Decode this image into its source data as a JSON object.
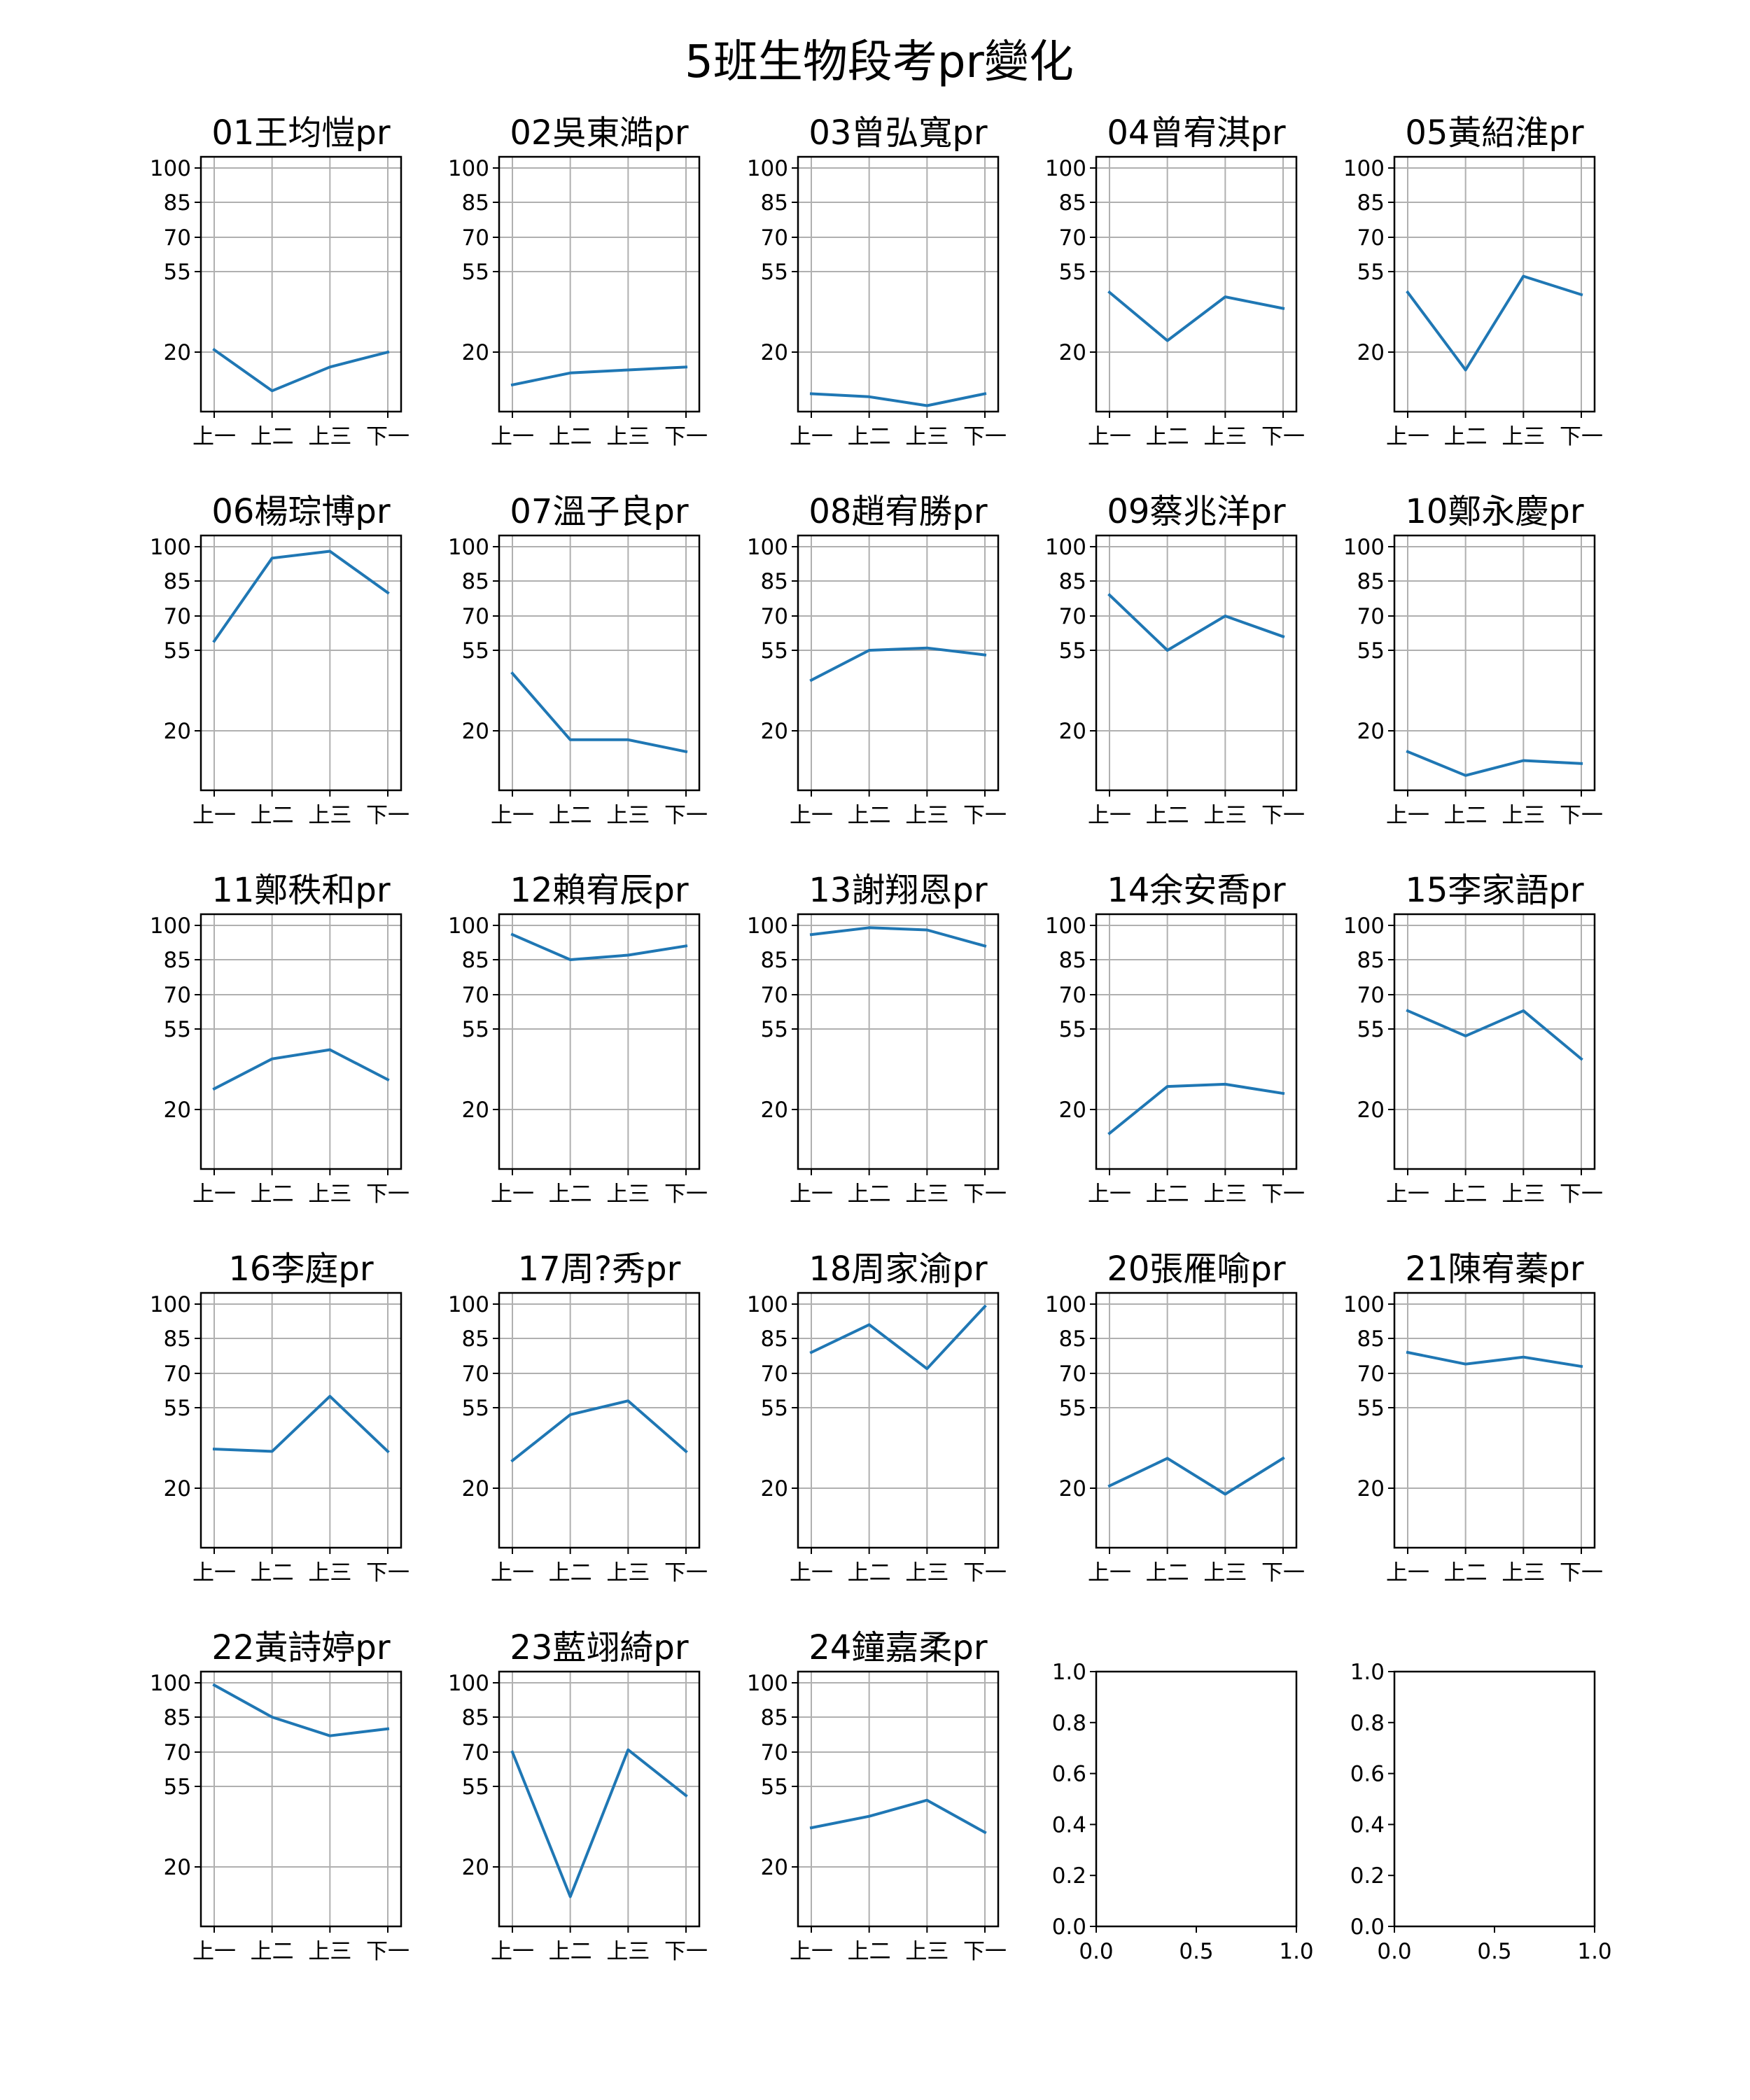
{
  "title": "5班生物段考pr變化",
  "chart_data": {
    "type": "line",
    "layout": "grid 5x5",
    "x": [
      "上一",
      "上二",
      "上三",
      "下一"
    ],
    "y_ticks": [
      20,
      55,
      70,
      85,
      100
    ],
    "grid": true,
    "line_color": "#1f77b4",
    "panels": [
      {
        "title": "01王均愷pr",
        "values": [
          21,
          7,
          15,
          20
        ]
      },
      {
        "title": "02吳東澔pr",
        "values": [
          9,
          13,
          14,
          15
        ]
      },
      {
        "title": "03曾弘寬pr",
        "values": [
          6,
          5,
          2,
          6
        ]
      },
      {
        "title": "04曾宥淇pr",
        "values": [
          46,
          25,
          44,
          39
        ]
      },
      {
        "title": "05黃紹淮pr",
        "values": [
          46,
          14,
          53,
          45
        ]
      },
      {
        "title": "06楊琮博pr",
        "values": [
          59,
          95,
          98,
          80
        ]
      },
      {
        "title": "07溫子良pr",
        "values": [
          45,
          17,
          17,
          13
        ]
      },
      {
        "title": "08趙宥勝pr",
        "values": [
          42,
          55,
          56,
          53
        ]
      },
      {
        "title": "09蔡兆洋pr",
        "values": [
          79,
          55,
          70,
          61
        ]
      },
      {
        "title": "10鄭永慶pr",
        "values": [
          13,
          5,
          10,
          9
        ]
      },
      {
        "title": "11鄭秩和pr",
        "values": [
          29,
          42,
          46,
          33
        ]
      },
      {
        "title": "12賴宥辰pr",
        "values": [
          96,
          85,
          87,
          91
        ]
      },
      {
        "title": "13謝翔恩pr",
        "values": [
          96,
          99,
          98,
          91
        ]
      },
      {
        "title": "14余安喬pr",
        "values": [
          12,
          30,
          31,
          27
        ]
      },
      {
        "title": "15李家語pr",
        "values": [
          63,
          52,
          63,
          42
        ]
      },
      {
        "title": "16李庭pr",
        "values": [
          37,
          36,
          60,
          36
        ]
      },
      {
        "title": "17周?秀pr",
        "values": [
          32,
          52,
          58,
          36
        ]
      },
      {
        "title": "18周家渝pr",
        "values": [
          79,
          91,
          72,
          99
        ]
      },
      {
        "title": "20張雁喻pr",
        "values": [
          21,
          33,
          18,
          33
        ]
      },
      {
        "title": "21陳宥蓁pr",
        "values": [
          79,
          74,
          77,
          73
        ]
      },
      {
        "title": "22黃詩婷pr",
        "values": [
          99,
          85,
          77,
          80
        ]
      },
      {
        "title": "23藍翊綺pr",
        "values": [
          70,
          10,
          71,
          51
        ]
      },
      {
        "title": "24鐘嘉柔pr",
        "values": [
          37,
          42,
          49,
          35
        ]
      }
    ],
    "empty_panels": [
      {
        "xlim": [
          0.0,
          1.0
        ],
        "ylim": [
          0.0,
          1.0
        ],
        "x_ticks": [
          "0.0",
          "0.5",
          "1.0"
        ],
        "y_ticks": [
          "0.0",
          "0.2",
          "0.4",
          "0.6",
          "0.8",
          "1.0"
        ]
      },
      {
        "xlim": [
          0.0,
          1.0
        ],
        "ylim": [
          0.0,
          1.0
        ],
        "x_ticks": [
          "0.0",
          "0.5",
          "1.0"
        ],
        "y_ticks": [
          "0.0",
          "0.2",
          "0.4",
          "0.6",
          "0.8",
          "1.0"
        ]
      }
    ]
  }
}
